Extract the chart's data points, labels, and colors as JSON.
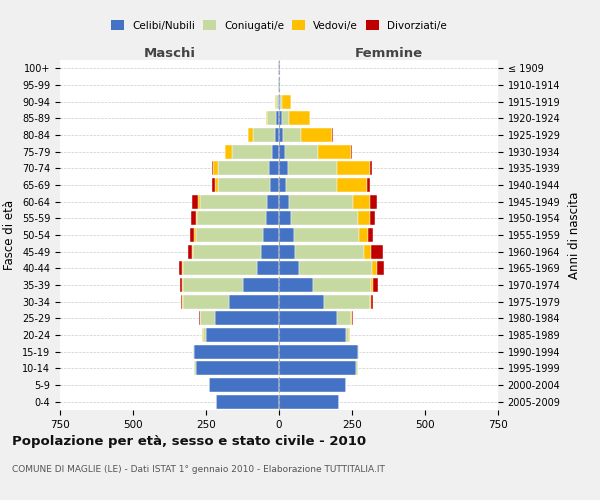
{
  "age_groups": [
    "0-4",
    "5-9",
    "10-14",
    "15-19",
    "20-24",
    "25-29",
    "30-34",
    "35-39",
    "40-44",
    "45-49",
    "50-54",
    "55-59",
    "60-64",
    "65-69",
    "70-74",
    "75-79",
    "80-84",
    "85-89",
    "90-94",
    "95-99",
    "100+"
  ],
  "birth_years": [
    "2005-2009",
    "2000-2004",
    "1995-1999",
    "1990-1994",
    "1985-1989",
    "1980-1984",
    "1975-1979",
    "1970-1974",
    "1965-1969",
    "1960-1964",
    "1955-1959",
    "1950-1954",
    "1945-1949",
    "1940-1944",
    "1935-1939",
    "1930-1934",
    "1925-1929",
    "1920-1924",
    "1915-1919",
    "1910-1914",
    "≤ 1909"
  ],
  "male": {
    "celibi": [
      215,
      240,
      285,
      290,
      250,
      220,
      170,
      125,
      75,
      60,
      55,
      45,
      40,
      30,
      35,
      25,
      15,
      10,
      5,
      2,
      2
    ],
    "coniugati": [
      0,
      0,
      5,
      5,
      10,
      50,
      160,
      205,
      255,
      235,
      230,
      235,
      230,
      180,
      175,
      135,
      75,
      30,
      5,
      0,
      0
    ],
    "vedovi": [
      0,
      0,
      0,
      0,
      2,
      2,
      2,
      2,
      2,
      3,
      5,
      5,
      8,
      10,
      15,
      25,
      15,
      5,
      2,
      0,
      0
    ],
    "divorziati": [
      0,
      0,
      0,
      0,
      0,
      3,
      5,
      8,
      10,
      15,
      15,
      15,
      20,
      8,
      5,
      0,
      0,
      0,
      0,
      0,
      0
    ]
  },
  "female": {
    "nubili": [
      205,
      230,
      265,
      270,
      230,
      200,
      155,
      115,
      70,
      55,
      50,
      40,
      35,
      25,
      30,
      20,
      15,
      10,
      5,
      2,
      2
    ],
    "coniugate": [
      0,
      0,
      5,
      5,
      10,
      45,
      155,
      200,
      250,
      235,
      225,
      230,
      220,
      175,
      170,
      115,
      60,
      25,
      5,
      0,
      0
    ],
    "vedove": [
      0,
      0,
      0,
      0,
      3,
      5,
      5,
      8,
      15,
      25,
      30,
      40,
      55,
      100,
      110,
      110,
      105,
      70,
      30,
      2,
      0
    ],
    "divorziate": [
      0,
      0,
      0,
      0,
      0,
      3,
      8,
      15,
      25,
      40,
      18,
      20,
      25,
      10,
      10,
      5,
      5,
      0,
      0,
      0,
      0
    ]
  },
  "color_celibi": "#4472c4",
  "color_coniugati": "#c5d9a0",
  "color_vedovi": "#ffc000",
  "color_divorziati": "#c00000",
  "xlim": 750,
  "title": "Popolazione per età, sesso e stato civile - 2010",
  "subtitle": "COMUNE DI MAGLIE (LE) - Dati ISTAT 1° gennaio 2010 - Elaborazione TUTTITALIA.IT",
  "ylabel": "Fasce di età",
  "ylabel_right": "Anni di nascita",
  "xlabel_maschi": "Maschi",
  "xlabel_femmine": "Femmine",
  "bg_color": "#f0f0f0",
  "plot_bg": "#ffffff"
}
